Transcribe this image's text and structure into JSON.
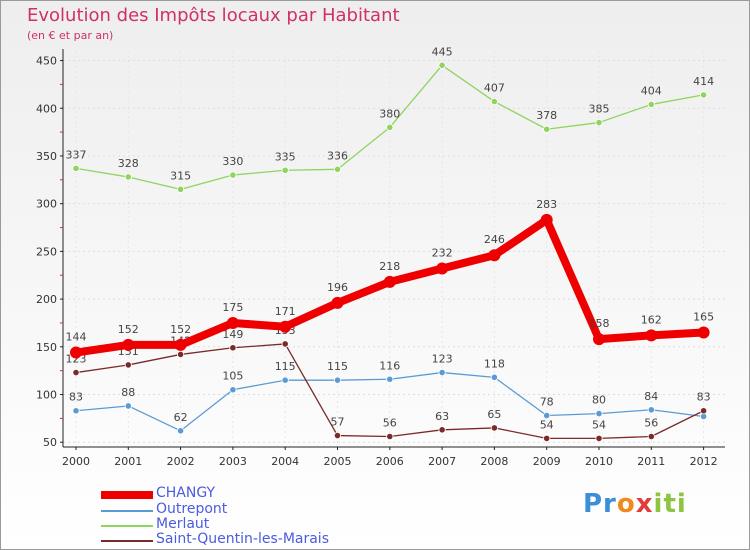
{
  "chart_data": {
    "type": "line",
    "title": "Evolution des Impôts locaux par Habitant",
    "subtitle": "(en € et par an)",
    "categories": [
      "2000",
      "2001",
      "2002",
      "2003",
      "2004",
      "2005",
      "2006",
      "2007",
      "2008",
      "2009",
      "2010",
      "2011",
      "2012"
    ],
    "yticks": [
      50,
      100,
      150,
      200,
      250,
      300,
      350,
      400,
      450
    ],
    "ylim": [
      45,
      460
    ],
    "series": [
      {
        "name": "CHANGY",
        "color": "#ee0000",
        "values": [
          144,
          152,
          152,
          175,
          171,
          196,
          218,
          232,
          246,
          283,
          158,
          162,
          165
        ]
      },
      {
        "name": "Outrepont",
        "color": "#5b9bd5",
        "values": [
          83,
          88,
          62,
          105,
          115,
          115,
          116,
          123,
          118,
          78,
          80,
          84,
          77
        ]
      },
      {
        "name": "Merlaut",
        "color": "#8fd45f",
        "values": [
          337,
          328,
          315,
          330,
          335,
          336,
          380,
          445,
          407,
          378,
          385,
          404,
          414
        ]
      },
      {
        "name": "Saint-Quentin-les-Marais",
        "color": "#7a2a2a",
        "values": [
          123,
          131,
          142,
          149,
          153,
          57,
          56,
          63,
          65,
          54,
          54,
          56,
          83
        ]
      }
    ],
    "point_labels": {
      "CHANGY": [
        "144",
        "152",
        "152",
        "175",
        "171",
        "196",
        "218",
        "232",
        "246",
        "283",
        "158",
        "162",
        "165"
      ],
      "Outrepont": [
        "83",
        "88",
        "62",
        "105",
        "115",
        "115",
        "116",
        "123",
        "118",
        "78",
        "80",
        "84",
        ""
      ],
      "Merlaut": [
        "337",
        "328",
        "315",
        "330",
        "335",
        "336",
        "380",
        "445",
        "407",
        "378",
        "385",
        "404",
        "414"
      ],
      "Saint-Quentin-les-Marais": [
        "123",
        "131",
        "142",
        "149",
        "153",
        "57",
        "56",
        "63",
        "65",
        "54",
        "54",
        "56",
        "83"
      ]
    },
    "legend": [
      "CHANGY",
      "Outrepont",
      "Merlaut",
      "Saint-Quentin-les-Marais"
    ]
  },
  "logo": {
    "text": "Proxiti",
    "parts": [
      "Pr",
      "o",
      "x",
      "iti"
    ]
  }
}
